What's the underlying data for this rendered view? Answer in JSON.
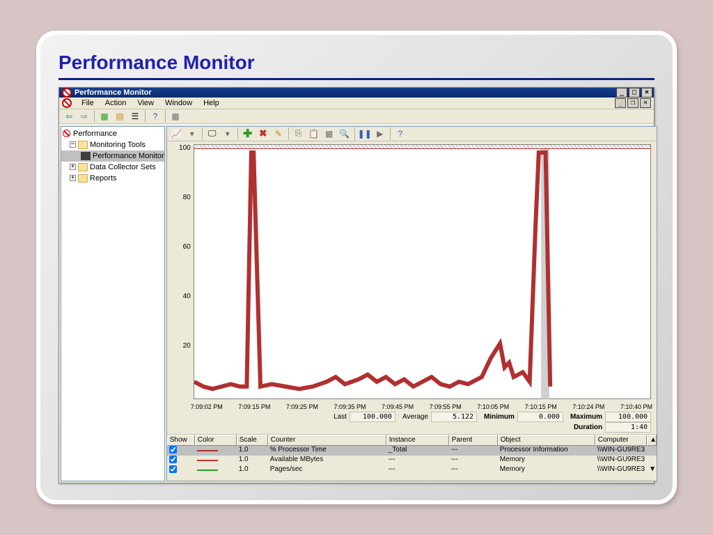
{
  "slide": {
    "title": "Performance Monitor"
  },
  "window": {
    "title": "Performance Monitor",
    "menus": [
      "File",
      "Action",
      "View",
      "Window",
      "Help"
    ]
  },
  "tree": {
    "root": "Performance",
    "monitoring": "Monitoring Tools",
    "perfmon": "Performance Monitor",
    "dcs": "Data Collector Sets",
    "reports": "Reports"
  },
  "chart": {
    "type": "line",
    "ylim": [
      0,
      100
    ],
    "yticks": [
      100,
      80,
      60,
      40,
      20
    ],
    "xticks": [
      "7:09:02 PM",
      "7:09:15 PM",
      "7:09:25 PM",
      "7:09:35 PM",
      "7:09:45 PM",
      "7:09:55 PM",
      "7:10:05 PM",
      "7:10:15 PM",
      "7:10:24 PM",
      "7:10:40 PM"
    ],
    "background_color": "#ffffff",
    "line_color": "#b03030",
    "line_width": 1,
    "points": [
      [
        0.0,
        4
      ],
      [
        0.02,
        2
      ],
      [
        0.04,
        1
      ],
      [
        0.06,
        2
      ],
      [
        0.08,
        3
      ],
      [
        0.1,
        2
      ],
      [
        0.115,
        2
      ],
      [
        0.125,
        100
      ],
      [
        0.13,
        100
      ],
      [
        0.145,
        2
      ],
      [
        0.17,
        3
      ],
      [
        0.2,
        2
      ],
      [
        0.23,
        1
      ],
      [
        0.26,
        2
      ],
      [
        0.29,
        4
      ],
      [
        0.31,
        6
      ],
      [
        0.33,
        3
      ],
      [
        0.36,
        5
      ],
      [
        0.38,
        7
      ],
      [
        0.4,
        4
      ],
      [
        0.42,
        6
      ],
      [
        0.44,
        3
      ],
      [
        0.46,
        5
      ],
      [
        0.48,
        2
      ],
      [
        0.5,
        4
      ],
      [
        0.52,
        6
      ],
      [
        0.54,
        3
      ],
      [
        0.56,
        2
      ],
      [
        0.58,
        4
      ],
      [
        0.6,
        3
      ],
      [
        0.63,
        6
      ],
      [
        0.65,
        14
      ],
      [
        0.67,
        20
      ],
      [
        0.68,
        10
      ],
      [
        0.69,
        12
      ],
      [
        0.7,
        6
      ],
      [
        0.72,
        8
      ],
      [
        0.735,
        4
      ],
      [
        0.748,
        70
      ],
      [
        0.755,
        100
      ],
      [
        0.77,
        100
      ],
      [
        0.78,
        2
      ]
    ],
    "highlight_bar": {
      "x": 0.76,
      "width": 0.018,
      "color": "#d0d0d0"
    }
  },
  "stats": {
    "last_label": "Last",
    "last": "100.000",
    "avg_label": "Average",
    "avg": "5.122",
    "min_label": "Minimum",
    "min": "0.000",
    "max_label": "Maximum",
    "max": "100.000",
    "dur_label": "Duration",
    "dur": "1:40"
  },
  "counters": {
    "headers": [
      "Show",
      "Color",
      "Scale",
      "Counter",
      "Instance",
      "Parent",
      "Object",
      "Computer"
    ],
    "rows": [
      {
        "checked": true,
        "color": "#b03030",
        "scale": "1.0",
        "counter": "% Processor Time",
        "instance": "_Total",
        "parent": "---",
        "object": "Processor Information",
        "computer": "\\\\WIN-GU9RE3"
      },
      {
        "checked": true,
        "color": "#c03030",
        "scale": "1.0",
        "counter": "Available MBytes",
        "instance": "---",
        "parent": "---",
        "object": "Memory",
        "computer": "\\\\WIN-GU9RE3"
      },
      {
        "checked": true,
        "color": "#2a9d2a",
        "scale": "1.0",
        "counter": "Pages/sec",
        "instance": "---",
        "parent": "---",
        "object": "Memory",
        "computer": "\\\\WIN-GU9RE3"
      }
    ]
  }
}
